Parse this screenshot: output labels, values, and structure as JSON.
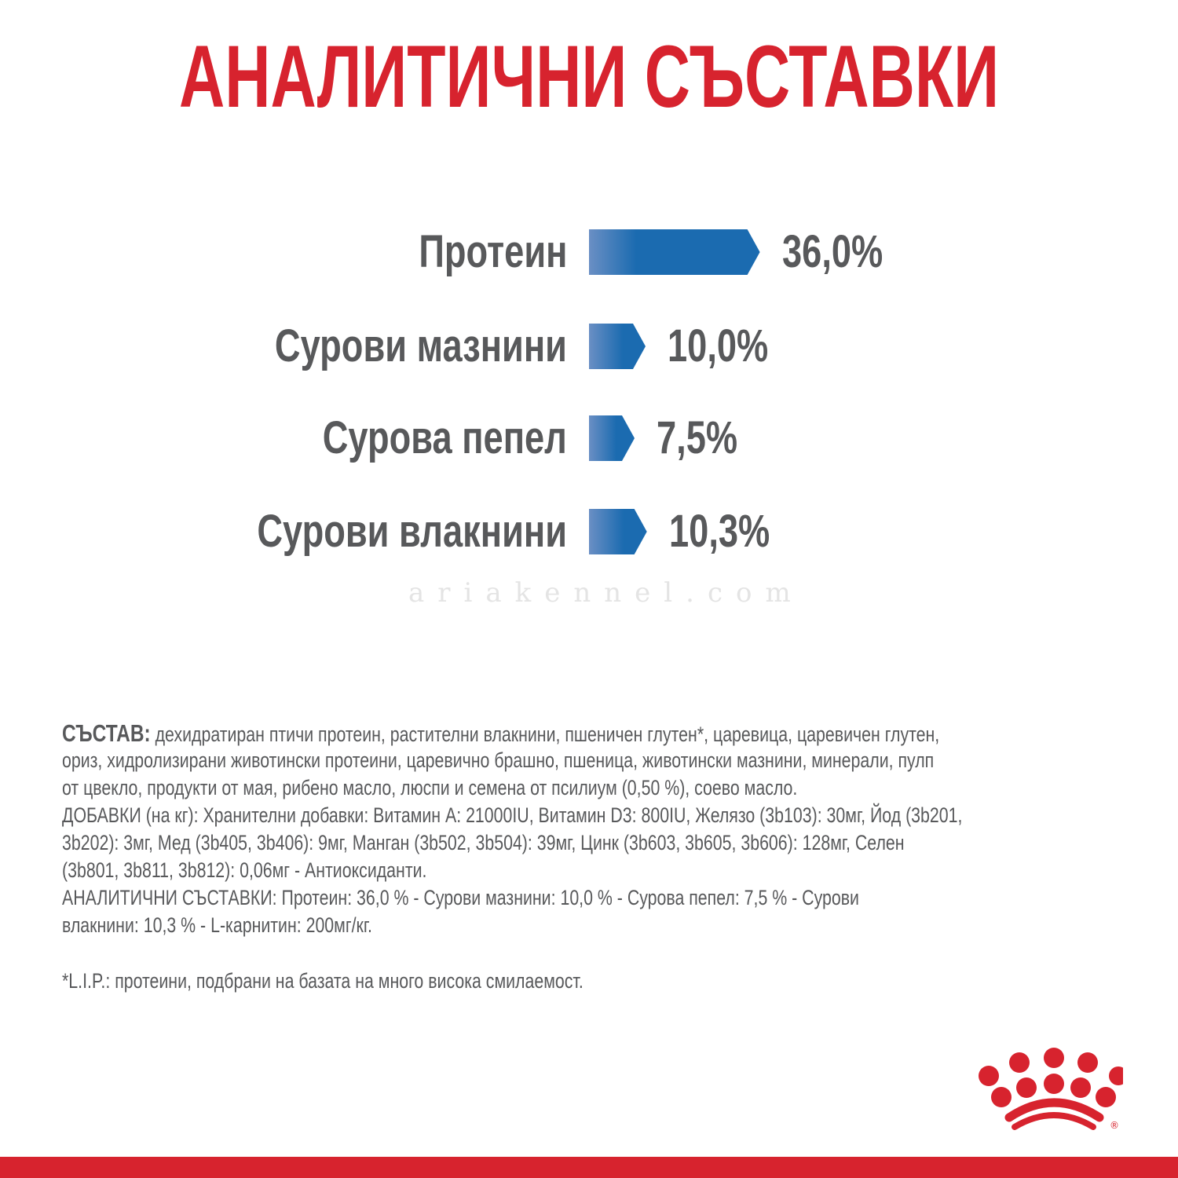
{
  "title": "АНАЛИТИЧНИ СЪСТАВКИ",
  "colors": {
    "brand_red": "#d7232e",
    "bar_start": "#6a8fc4",
    "bar_end": "#1b6bb0",
    "text_gray": "#58595b"
  },
  "chart_data": {
    "type": "bar",
    "orientation": "horizontal",
    "categories": [
      "Протеин",
      "Сурови мазнини",
      "Сурова пепел",
      "Сурови влакнини"
    ],
    "values": [
      36.0,
      10.0,
      7.5,
      10.3
    ],
    "value_labels": [
      "36,0%",
      "10,0%",
      "7,5%",
      "10,3%"
    ],
    "unit": "%",
    "grid": false
  },
  "watermark": "ariakennel.com",
  "composition": {
    "heading": "СЪСТАВ:",
    "lines": [
      " дехидратиран птичи протеин, растителни влакнини, пшеничен глутен*, царевица, царевичен глутен,",
      "ориз, хидролизирани животински протеини, царевично брашно, пшеница, животински мазнини, минерали, пулп",
      "от цвекло, продукти от мая, рибено масло, люспи и семена от псилиум (0,50 %), соево масло.",
      "ДОБАВКИ (на кг): Хранителни добавки: Витамин A: 21000IU, Витамин D3: 800IU, Желязо (3b103): 30мг, Йод (3b201,",
      "3b202): 3мг, Мед (3b405, 3b406): 9мг, Манган (3b502, 3b504): 39мг, Цинк (3b603, 3b605, 3b606): 128мг, Селен",
      "(3b801, 3b811, 3b812): 0,06мг - Антиоксиданти.",
      "АНАЛИТИЧНИ СЪСТАВКИ: Протеин: 36,0 % - Сурови мазнини: 10,0 % - Сурова пепел: 7,5 % - Сурови",
      "влакнини: 10,3 % - L-карнитин: 200мг/кг."
    ],
    "footnote": "*L.I.P.: протеини, подбрани на базата на много висока смилаемост."
  },
  "logo": {
    "name": "crown-logo",
    "mark": "®"
  }
}
